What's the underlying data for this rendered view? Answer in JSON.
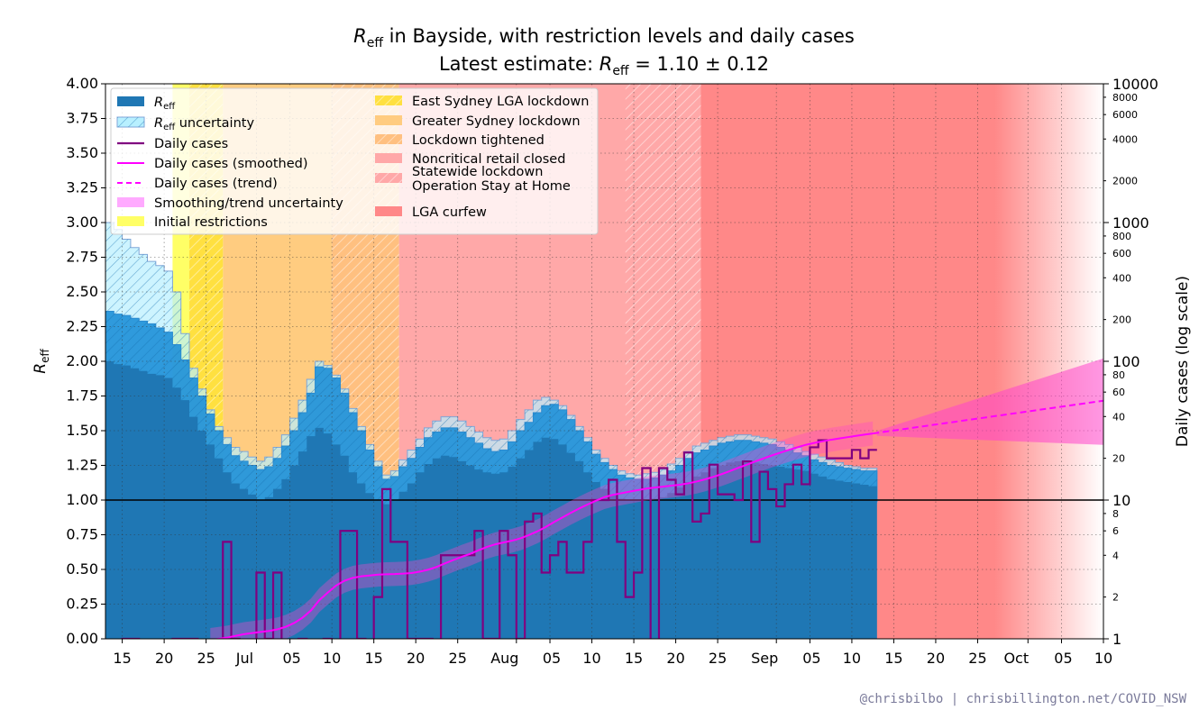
{
  "chart_data": {
    "type": "line",
    "title": {
      "sym": "R",
      "sub": "eff",
      "text": " in Bayside, with restriction levels and daily cases"
    },
    "subtitle": {
      "prefix": "Latest estimate: ",
      "sym": "R",
      "sub": "eff",
      "value": " = 1.10 ± 0.12"
    },
    "ylabel": {
      "sym": "R",
      "sub": "eff"
    },
    "y2label": "Daily cases (log scale)",
    "ylim": [
      0,
      4
    ],
    "y2lim": [
      1,
      10000
    ],
    "y2scale": "log",
    "xlim": [
      "2021-06-13",
      "2021-10-10"
    ],
    "grid": true,
    "legend_position": "top-left",
    "yticks": [
      "0.00",
      "0.25",
      "0.50",
      "0.75",
      "1.00",
      "1.25",
      "1.50",
      "1.75",
      "2.00",
      "2.25",
      "2.50",
      "2.75",
      "3.00",
      "3.25",
      "3.50",
      "3.75",
      "4.00"
    ],
    "y2major": [
      "1",
      "10",
      "100",
      "1000",
      "10000"
    ],
    "y2minor": [
      "2",
      "4",
      "6",
      "8",
      "20",
      "40",
      "60",
      "80",
      "200",
      "400",
      "600",
      "800",
      "2000",
      "4000",
      "6000",
      "8000"
    ],
    "xticks": [
      {
        "date": "2021-06-15",
        "label": "15"
      },
      {
        "date": "2021-06-20",
        "label": "20"
      },
      {
        "date": "2021-06-25",
        "label": "25"
      },
      {
        "date": "2021-07-01",
        "label": "Jul"
      },
      {
        "date": "2021-07-05",
        "label": "05"
      },
      {
        "date": "2021-07-10",
        "label": "10"
      },
      {
        "date": "2021-07-15",
        "label": "15"
      },
      {
        "date": "2021-07-20",
        "label": "20"
      },
      {
        "date": "2021-07-25",
        "label": "25"
      },
      {
        "date": "2021-08-01",
        "label": "Aug"
      },
      {
        "date": "2021-08-05",
        "label": "05"
      },
      {
        "date": "2021-08-10",
        "label": "10"
      },
      {
        "date": "2021-08-15",
        "label": "15"
      },
      {
        "date": "2021-08-20",
        "label": "20"
      },
      {
        "date": "2021-08-25",
        "label": "25"
      },
      {
        "date": "2021-09-01",
        "label": "Sep"
      },
      {
        "date": "2021-09-05",
        "label": "05"
      },
      {
        "date": "2021-09-10",
        "label": "10"
      },
      {
        "date": "2021-09-15",
        "label": "15"
      },
      {
        "date": "2021-09-20",
        "label": "20"
      },
      {
        "date": "2021-09-25",
        "label": "25"
      },
      {
        "date": "2021-10-01",
        "label": "Oct"
      },
      {
        "date": "2021-10-05",
        "label": "05"
      },
      {
        "date": "2021-10-10",
        "label": "10"
      }
    ],
    "restrictions": [
      {
        "name": "Initial restrictions",
        "start": "2021-06-21",
        "end": "2021-06-27",
        "color": "#ffff66",
        "hatch": false
      },
      {
        "name": "East Sydney LGA lockdown",
        "start": "2021-06-23",
        "end": "2021-06-27",
        "color": "#ffe040",
        "hatch": true
      },
      {
        "name": "Greater Sydney lockdown",
        "start": "2021-06-27",
        "end": "2021-07-10",
        "color": "#ffcc80",
        "hatch": false
      },
      {
        "name": "Lockdown tightened",
        "start": "2021-07-10",
        "end": "2021-07-18",
        "color": "#ffc080",
        "hatch": true
      },
      {
        "name": "Noncritical retail closed",
        "start": "2021-07-18",
        "end": "2021-08-23",
        "color": "#ffa8a8",
        "hatch": false
      },
      {
        "name": "Statewide lockdown\nOperation Stay at Home",
        "start": "2021-08-14",
        "end": "2021-08-23",
        "color": "#ffa8a8",
        "hatch": true
      },
      {
        "name": "LGA curfew",
        "start": "2021-08-23",
        "end": "2021-10-10",
        "color": "#ff8888",
        "hatch": false
      }
    ],
    "reff": {
      "dates": [
        "06-13",
        "06-14",
        "06-15",
        "06-16",
        "06-17",
        "06-18",
        "06-19",
        "06-20",
        "06-21",
        "06-22",
        "06-23",
        "06-24",
        "06-25",
        "06-26",
        "06-27",
        "06-28",
        "06-29",
        "06-30",
        "07-01",
        "07-02",
        "07-03",
        "07-04",
        "07-05",
        "07-06",
        "07-07",
        "07-08",
        "07-09",
        "07-10",
        "07-11",
        "07-12",
        "07-13",
        "07-14",
        "07-15",
        "07-16",
        "07-17",
        "07-18",
        "07-19",
        "07-20",
        "07-21",
        "07-22",
        "07-23",
        "07-24",
        "07-25",
        "07-26",
        "07-27",
        "07-28",
        "07-29",
        "07-30",
        "07-31",
        "08-01",
        "08-02",
        "08-03",
        "08-04",
        "08-05",
        "08-06",
        "08-07",
        "08-08",
        "08-09",
        "08-10",
        "08-11",
        "08-12",
        "08-13",
        "08-14",
        "08-15",
        "08-16",
        "08-17",
        "08-18",
        "08-19",
        "08-20",
        "08-21",
        "08-22",
        "08-23",
        "08-24",
        "08-25",
        "08-26",
        "08-27",
        "08-28",
        "08-29",
        "08-30",
        "08-31",
        "09-01",
        "09-02",
        "09-03",
        "09-04",
        "09-05",
        "09-06",
        "09-07",
        "09-08",
        "09-09",
        "09-10",
        "09-11",
        "09-12"
      ],
      "values": [
        2.0,
        1.98,
        1.97,
        1.95,
        1.93,
        1.91,
        1.9,
        1.88,
        1.81,
        1.72,
        1.6,
        1.5,
        1.4,
        1.3,
        1.2,
        1.12,
        1.08,
        1.04,
        1.0,
        1.02,
        1.08,
        1.15,
        1.25,
        1.35,
        1.46,
        1.52,
        1.48,
        1.4,
        1.32,
        1.2,
        1.12,
        1.05,
        1.0,
        0.97,
        1.0,
        1.06,
        1.12,
        1.2,
        1.26,
        1.3,
        1.32,
        1.31,
        1.28,
        1.25,
        1.22,
        1.2,
        1.19,
        1.2,
        1.24,
        1.3,
        1.36,
        1.42,
        1.45,
        1.44,
        1.4,
        1.34,
        1.28,
        1.2,
        1.13,
        1.08,
        1.04,
        1.01,
        1.0,
        1.0,
        1.0,
        1.01,
        1.02,
        1.05,
        1.09,
        1.13,
        1.17,
        1.2,
        1.23,
        1.25,
        1.27,
        1.28,
        1.28,
        1.27,
        1.26,
        1.25,
        1.24,
        1.23,
        1.22,
        1.21,
        1.19,
        1.17,
        1.15,
        1.14,
        1.13,
        1.12,
        1.11,
        1.1
      ],
      "lower": [
        1.67,
        1.66,
        1.65,
        1.64,
        1.63,
        1.62,
        1.61,
        1.6,
        1.55,
        1.48,
        1.37,
        1.27,
        1.17,
        1.08,
        0.99,
        0.92,
        0.86,
        0.82,
        0.83,
        0.87,
        0.93,
        1.01,
        1.1,
        1.2,
        1.3,
        1.34,
        1.33,
        1.27,
        1.2,
        1.08,
        0.98,
        0.9,
        0.84,
        0.8,
        0.83,
        0.9,
        0.96,
        1.03,
        1.09,
        1.13,
        1.14,
        1.13,
        1.11,
        1.08,
        1.06,
        1.04,
        1.03,
        1.04,
        1.08,
        1.13,
        1.2,
        1.25,
        1.27,
        1.26,
        1.22,
        1.16,
        1.11,
        1.03,
        0.97,
        0.93,
        0.9,
        0.88,
        0.88,
        0.89,
        0.9,
        0.91,
        0.93,
        0.96,
        1.0,
        1.04,
        1.08,
        1.11,
        1.14,
        1.16,
        1.18,
        1.18,
        1.18,
        1.17,
        1.16,
        1.15,
        1.14,
        1.13,
        1.12,
        1.11,
        1.09,
        1.07,
        1.05,
        1.04,
        1.03,
        1.01,
        1.0,
        0.99
      ],
      "upper": [
        2.36,
        2.34,
        2.33,
        2.31,
        2.29,
        2.27,
        2.24,
        2.21,
        2.12,
        2.01,
        1.88,
        1.75,
        1.62,
        1.5,
        1.4,
        1.32,
        1.28,
        1.25,
        1.22,
        1.24,
        1.3,
        1.39,
        1.5,
        1.63,
        1.77,
        1.96,
        1.95,
        1.88,
        1.77,
        1.63,
        1.5,
        1.36,
        1.24,
        1.15,
        1.17,
        1.24,
        1.3,
        1.38,
        1.45,
        1.49,
        1.52,
        1.52,
        1.49,
        1.45,
        1.41,
        1.37,
        1.35,
        1.36,
        1.42,
        1.5,
        1.56,
        1.63,
        1.68,
        1.69,
        1.65,
        1.58,
        1.5,
        1.42,
        1.33,
        1.27,
        1.22,
        1.18,
        1.16,
        1.15,
        1.15,
        1.16,
        1.18,
        1.21,
        1.25,
        1.3,
        1.34,
        1.36,
        1.39,
        1.41,
        1.42,
        1.43,
        1.43,
        1.42,
        1.41,
        1.4,
        1.38,
        1.36,
        1.34,
        1.32,
        1.29,
        1.27,
        1.25,
        1.24,
        1.23,
        1.22,
        1.21,
        1.21
      ],
      "outer_upper": [
        3.0,
        2.95,
        2.88,
        2.82,
        2.77,
        2.72,
        2.69,
        2.65,
        2.5,
        2.2,
        1.95,
        1.8,
        1.65,
        1.53,
        1.45,
        1.38,
        1.35,
        1.31,
        1.28,
        1.31,
        1.38,
        1.47,
        1.59,
        1.72,
        1.87,
        2.0,
        1.97,
        1.9,
        1.8,
        1.66,
        1.53,
        1.4,
        1.28,
        1.18,
        1.21,
        1.29,
        1.36,
        1.44,
        1.52,
        1.57,
        1.6,
        1.6,
        1.57,
        1.53,
        1.49,
        1.45,
        1.43,
        1.44,
        1.5,
        1.58,
        1.65,
        1.72,
        1.74,
        1.72,
        1.68,
        1.61,
        1.53,
        1.45,
        1.36,
        1.3,
        1.25,
        1.21,
        1.19,
        1.18,
        1.19,
        1.2,
        1.22,
        1.26,
        1.3,
        1.35,
        1.39,
        1.41,
        1.43,
        1.45,
        1.46,
        1.47,
        1.47,
        1.46,
        1.45,
        1.44,
        1.42,
        1.4,
        1.38,
        1.35,
        1.33,
        1.31,
        1.29,
        1.27,
        1.25,
        1.24,
        1.23,
        1.23
      ],
      "outer_lower": [
        1.6,
        1.6,
        1.59,
        1.58,
        1.57,
        1.56,
        1.55,
        1.54,
        1.48,
        1.4,
        1.3,
        1.2,
        1.1,
        1.01,
        0.93,
        0.86,
        0.82,
        0.79,
        0.8,
        0.84,
        0.9,
        0.98,
        1.06,
        1.16,
        1.26,
        1.31,
        1.3,
        1.24,
        1.16,
        1.04,
        0.95,
        0.86,
        0.81,
        0.78,
        0.81,
        0.87,
        0.93,
        1.0,
        1.06,
        1.1,
        1.11,
        1.1,
        1.08,
        1.05,
        1.03,
        1.01,
        1.0,
        1.01,
        1.05,
        1.1,
        1.17,
        1.22,
        1.24,
        1.23,
        1.19,
        1.13,
        1.07,
        1.0,
        0.94,
        0.9,
        0.87,
        0.86,
        0.86,
        0.87,
        0.88,
        0.89,
        0.91,
        0.94,
        0.98,
        1.02,
        1.06,
        1.09,
        1.12,
        1.14,
        1.16,
        1.16,
        1.16,
        1.15,
        1.14,
        1.13,
        1.12,
        1.11,
        1.1,
        1.09,
        1.07,
        1.05,
        1.03,
        1.02,
        1.01,
        1.0,
        0.99,
        0.98
      ]
    },
    "daily_cases": {
      "dates": [
        "06-13",
        "06-14",
        "06-15",
        "06-16",
        "06-17",
        "06-18",
        "06-19",
        "06-20",
        "06-21",
        "06-22",
        "06-23",
        "06-24",
        "06-25",
        "06-26",
        "06-27",
        "06-28",
        "06-29",
        "06-30",
        "07-01",
        "07-02",
        "07-03",
        "07-04",
        "07-05",
        "07-06",
        "07-07",
        "07-08",
        "07-09",
        "07-10",
        "07-11",
        "07-12",
        "07-13",
        "07-14",
        "07-15",
        "07-16",
        "07-17",
        "07-18",
        "07-19",
        "07-20",
        "07-21",
        "07-22",
        "07-23",
        "07-24",
        "07-25",
        "07-26",
        "07-27",
        "07-28",
        "07-29",
        "07-30",
        "07-31",
        "08-01",
        "08-02",
        "08-03",
        "08-04",
        "08-05",
        "08-06",
        "08-07",
        "08-08",
        "08-09",
        "08-10",
        "08-11",
        "08-12",
        "08-13",
        "08-14",
        "08-15",
        "08-16",
        "08-17",
        "08-18",
        "08-19",
        "08-20",
        "08-21",
        "08-22",
        "08-23",
        "08-24",
        "08-25",
        "08-26",
        "08-27",
        "08-28",
        "08-29",
        "08-30",
        "08-31",
        "09-01",
        "09-02",
        "09-03",
        "09-04",
        "09-05",
        "09-06",
        "09-07",
        "09-08",
        "09-09",
        "09-10",
        "09-11",
        "09-12"
      ],
      "values": [
        0,
        0,
        1,
        1,
        0,
        0,
        0,
        0,
        1,
        1,
        1,
        0,
        0,
        0,
        5,
        1,
        0,
        0,
        3,
        1,
        3,
        0,
        0,
        1,
        0,
        0,
        1,
        0,
        6,
        6,
        1,
        0,
        2,
        12,
        5,
        5,
        1,
        1,
        1,
        0,
        4,
        4,
        4,
        4,
        6,
        1,
        1,
        6,
        4,
        1,
        7,
        8,
        3,
        4,
        5,
        3,
        3,
        5,
        10,
        10,
        14,
        5,
        2,
        3,
        17,
        0,
        17,
        14,
        11,
        22,
        7,
        8,
        18,
        11,
        11,
        10,
        19,
        5,
        16,
        12,
        9,
        13,
        18,
        13,
        24,
        27,
        20,
        20,
        20,
        23,
        20,
        23
      ],
      "smoothed": [
        null,
        null,
        null,
        null,
        null,
        null,
        null,
        null,
        null,
        null,
        null,
        null,
        0.98,
        1.0,
        1.02,
        1.05,
        1.08,
        1.1,
        1.12,
        1.14,
        1.17,
        1.22,
        1.3,
        1.42,
        1.6,
        1.9,
        2.15,
        2.42,
        2.62,
        2.75,
        2.82,
        2.86,
        2.9,
        2.92,
        2.93,
        2.95,
        2.98,
        3.05,
        3.15,
        3.3,
        3.5,
        3.7,
        3.9,
        4.1,
        4.35,
        4.6,
        4.8,
        4.95,
        5.1,
        5.3,
        5.6,
        5.95,
        6.4,
        6.95,
        7.5,
        8.1,
        8.7,
        9.3,
        9.9,
        10.5,
        10.9,
        11.2,
        11.5,
        11.8,
        12.1,
        12.3,
        12.5,
        12.7,
        12.9,
        13.2,
        13.6,
        14.1,
        14.7,
        15.4,
        16.2,
        17.1,
        18.0,
        19.0,
        20.0,
        21.0,
        22.0,
        23.0,
        24.0,
        25.0,
        25.8,
        26.5,
        27.2,
        27.8,
        28.4,
        29.0,
        29.6,
        30.2
      ],
      "trend": {
        "dates": [
          "09-12",
          "10-10"
        ],
        "values": [
          30.2,
          52
        ],
        "lower": [
          29,
          25
        ],
        "upper": [
          31.5,
          105
        ]
      }
    },
    "legend": [
      {
        "label_sym": "R",
        "label_sub": "eff",
        "label": "",
        "key": "reff"
      },
      {
        "label_sym": "R",
        "label_sub": "eff",
        "label": " uncertainty",
        "key": "reff_unc"
      },
      {
        "label": "Daily cases",
        "key": "cases"
      },
      {
        "label": "Daily cases (smoothed)",
        "key": "smoothed"
      },
      {
        "label": "Daily cases (trend)",
        "key": "trend"
      },
      {
        "label": "Smoothing/trend uncertainty",
        "key": "trend_unc"
      },
      {
        "label": "Initial restrictions",
        "key": "r0"
      },
      {
        "label": "East Sydney LGA lockdown",
        "key": "r1"
      },
      {
        "label": "Greater Sydney lockdown",
        "key": "r2"
      },
      {
        "label": "Lockdown tightened",
        "key": "r3"
      },
      {
        "label": "Noncritical retail closed",
        "key": "r4"
      },
      {
        "label": "Statewide lockdown\nOperation Stay at Home",
        "key": "r5"
      },
      {
        "label": "LGA curfew",
        "key": "r6"
      }
    ],
    "colors": {
      "reff": "#1f77b4",
      "reff_band": "#1e90d8",
      "reff_outer": "#b8f0ff",
      "cases": "#800080",
      "smoothed": "#ff00ff",
      "trend": "#ff00ff",
      "trend_band": "#ff44cc"
    }
  },
  "credit": "@chrisbilbo | chrisbillington.net/COVID_NSW"
}
